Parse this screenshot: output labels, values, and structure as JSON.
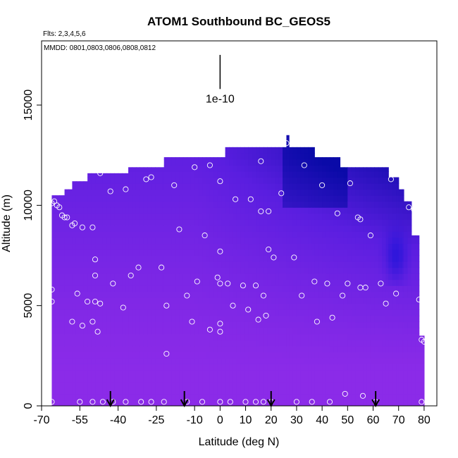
{
  "chart_data": {
    "type": "heatmap",
    "title": "ATOM1 Southbound BC_GEOS5",
    "subtitle": "Flts: 2,3,4,5,6",
    "annotation": "MMDD: 0801,0803,0806,0808,0812",
    "xlabel": "Latitude (deg N)",
    "ylabel": "Altitude (m)",
    "xlim": [
      -70,
      85
    ],
    "ylim": [
      0,
      18200
    ],
    "x_ticks": [
      -70,
      -55,
      -40,
      -25,
      -10,
      0,
      10,
      20,
      30,
      40,
      50,
      60,
      70,
      80
    ],
    "x_tick_labels": [
      "-70",
      "-55",
      "-40",
      "-25",
      "-10",
      "0",
      "10",
      "20",
      "30",
      "40",
      "50",
      "60",
      "70",
      "80"
    ],
    "y_ticks": [
      0,
      5000,
      10000,
      15000
    ],
    "y_tick_labels": [
      "0",
      "5000",
      "10000",
      "15000"
    ],
    "scale_bar": {
      "label": "1e-10",
      "x": 0,
      "y_bottom": 15800,
      "y_top": 17500
    },
    "colors": {
      "low": "#8b2be8",
      "mid": "#5a1ee0",
      "high": "#0a0aa8",
      "peak": "#1a12d8",
      "marker": "#ffffff",
      "arrow": "#000000"
    },
    "envelope": [
      {
        "lat_from": -66,
        "lat_to": -61,
        "alt_top": 10500
      },
      {
        "lat_from": -61,
        "lat_to": -58,
        "alt_top": 10800
      },
      {
        "lat_from": -58,
        "lat_to": -52,
        "alt_top": 11200
      },
      {
        "lat_from": -52,
        "lat_to": -36,
        "alt_top": 11600
      },
      {
        "lat_from": -36,
        "lat_to": -22,
        "alt_top": 11900
      },
      {
        "lat_from": -22,
        "lat_to": 2,
        "alt_top": 12400
      },
      {
        "lat_from": 2,
        "lat_to": 26,
        "alt_top": 12900
      },
      {
        "lat_from": 26,
        "lat_to": 27,
        "alt_top": 13500
      },
      {
        "lat_from": 27,
        "lat_to": 37,
        "alt_top": 12900
      },
      {
        "lat_from": 37,
        "lat_to": 47,
        "alt_top": 12400
      },
      {
        "lat_from": 47,
        "lat_to": 66,
        "alt_top": 11900
      },
      {
        "lat_from": 66,
        "lat_to": 70,
        "alt_top": 11400
      },
      {
        "lat_from": 70,
        "lat_to": 72,
        "alt_top": 10800
      },
      {
        "lat_from": 72,
        "lat_to": 75,
        "alt_top": 10200
      },
      {
        "lat_from": 75,
        "lat_to": 78,
        "alt_top": 8500
      },
      {
        "lat_from": 78,
        "lat_to": 80,
        "alt_top": 3500
      }
    ],
    "arrows_lat": [
      -43,
      -14,
      20,
      61
    ],
    "flight_points": [
      [
        -66,
        10100
      ],
      [
        -65,
        10200
      ],
      [
        -64,
        10000
      ],
      [
        -63,
        9900
      ],
      [
        -62,
        9500
      ],
      [
        -61,
        9400
      ],
      [
        -60,
        9400
      ],
      [
        -58,
        9000
      ],
      [
        -57,
        9100
      ],
      [
        -54,
        8900
      ],
      [
        -50,
        8900
      ],
      [
        -47,
        11600
      ],
      [
        -43,
        10700
      ],
      [
        -37,
        10800
      ],
      [
        -29,
        11300
      ],
      [
        -27,
        11400
      ],
      [
        -18,
        11000
      ],
      [
        -10,
        11900
      ],
      [
        -4,
        12000
      ],
      [
        0,
        11200
      ],
      [
        16,
        12200
      ],
      [
        26,
        13100
      ],
      [
        33,
        12000
      ],
      [
        40,
        11000
      ],
      [
        51,
        11100
      ],
      [
        67,
        11300
      ],
      [
        74,
        9900
      ],
      [
        76,
        9800
      ],
      [
        -16,
        8800
      ],
      [
        -6,
        8500
      ],
      [
        6,
        10300
      ],
      [
        12,
        10300
      ],
      [
        16,
        9700
      ],
      [
        19,
        9700
      ],
      [
        24,
        10600
      ],
      [
        46,
        9600
      ],
      [
        54,
        9400
      ],
      [
        55,
        9300
      ],
      [
        59,
        8500
      ],
      [
        0,
        7700
      ],
      [
        19,
        7800
      ],
      [
        29,
        7400
      ],
      [
        21,
        7400
      ],
      [
        -49,
        7300
      ],
      [
        -32,
        6900
      ],
      [
        -23,
        6900
      ],
      [
        -49,
        6500
      ],
      [
        -35,
        6500
      ],
      [
        -42,
        6100
      ],
      [
        -9,
        6200
      ],
      [
        -1,
        6400
      ],
      [
        0,
        6100
      ],
      [
        3,
        6100
      ],
      [
        9,
        6000
      ],
      [
        14,
        6000
      ],
      [
        37,
        6200
      ],
      [
        42,
        6100
      ],
      [
        50,
        6100
      ],
      [
        55,
        5900
      ],
      [
        57,
        5900
      ],
      [
        63,
        6100
      ],
      [
        -66,
        5800
      ],
      [
        -56,
        5600
      ],
      [
        -13,
        5500
      ],
      [
        17,
        5500
      ],
      [
        32,
        5500
      ],
      [
        48,
        5500
      ],
      [
        69,
        5600
      ],
      [
        78,
        5300
      ],
      [
        -66,
        5200
      ],
      [
        -52,
        5200
      ],
      [
        -49,
        5200
      ],
      [
        -47,
        5100
      ],
      [
        -21,
        5000
      ],
      [
        -38,
        4900
      ],
      [
        5,
        5000
      ],
      [
        11,
        4800
      ],
      [
        65,
        5100
      ],
      [
        -54,
        4000
      ],
      [
        -58,
        4200
      ],
      [
        -50,
        4200
      ],
      [
        -48,
        3700
      ],
      [
        -11,
        4200
      ],
      [
        -4,
        3800
      ],
      [
        0,
        4100
      ],
      [
        0,
        3700
      ],
      [
        15,
        4300
      ],
      [
        18,
        4500
      ],
      [
        38,
        4200
      ],
      [
        44,
        4400
      ],
      [
        79,
        3300
      ],
      [
        80,
        3200
      ],
      [
        -21,
        2600
      ],
      [
        -66,
        200
      ],
      [
        -55,
        200
      ],
      [
        -50,
        200
      ],
      [
        -46,
        200
      ],
      [
        -42,
        200
      ],
      [
        -37,
        200
      ],
      [
        -31,
        200
      ],
      [
        -27,
        200
      ],
      [
        -22,
        200
      ],
      [
        -13,
        200
      ],
      [
        -7,
        200
      ],
      [
        0,
        200
      ],
      [
        4,
        200
      ],
      [
        10,
        200
      ],
      [
        14,
        200
      ],
      [
        17,
        200
      ],
      [
        20,
        200
      ],
      [
        30,
        200
      ],
      [
        36,
        200
      ],
      [
        43,
        200
      ],
      [
        49,
        600
      ],
      [
        56,
        500
      ],
      [
        61,
        200
      ],
      [
        79,
        200
      ]
    ]
  }
}
